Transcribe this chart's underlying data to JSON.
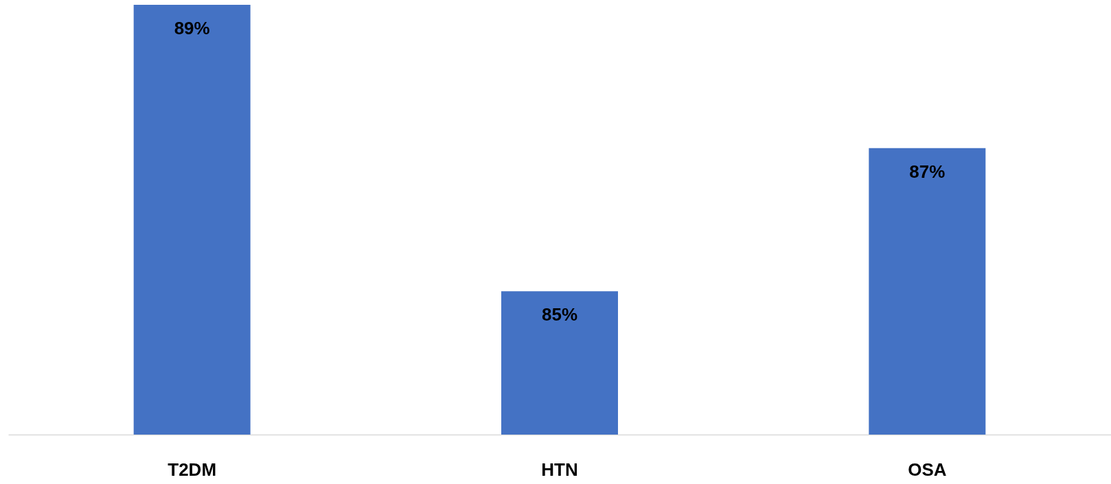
{
  "chart_data": {
    "type": "bar",
    "categories": [
      "T2DM",
      "HTN",
      "OSA"
    ],
    "values": [
      89,
      85,
      87
    ],
    "color": "#4472c4",
    "ylim": [
      83,
      89
    ],
    "value_labels": [
      "89%",
      "85%",
      "87%"
    ]
  }
}
